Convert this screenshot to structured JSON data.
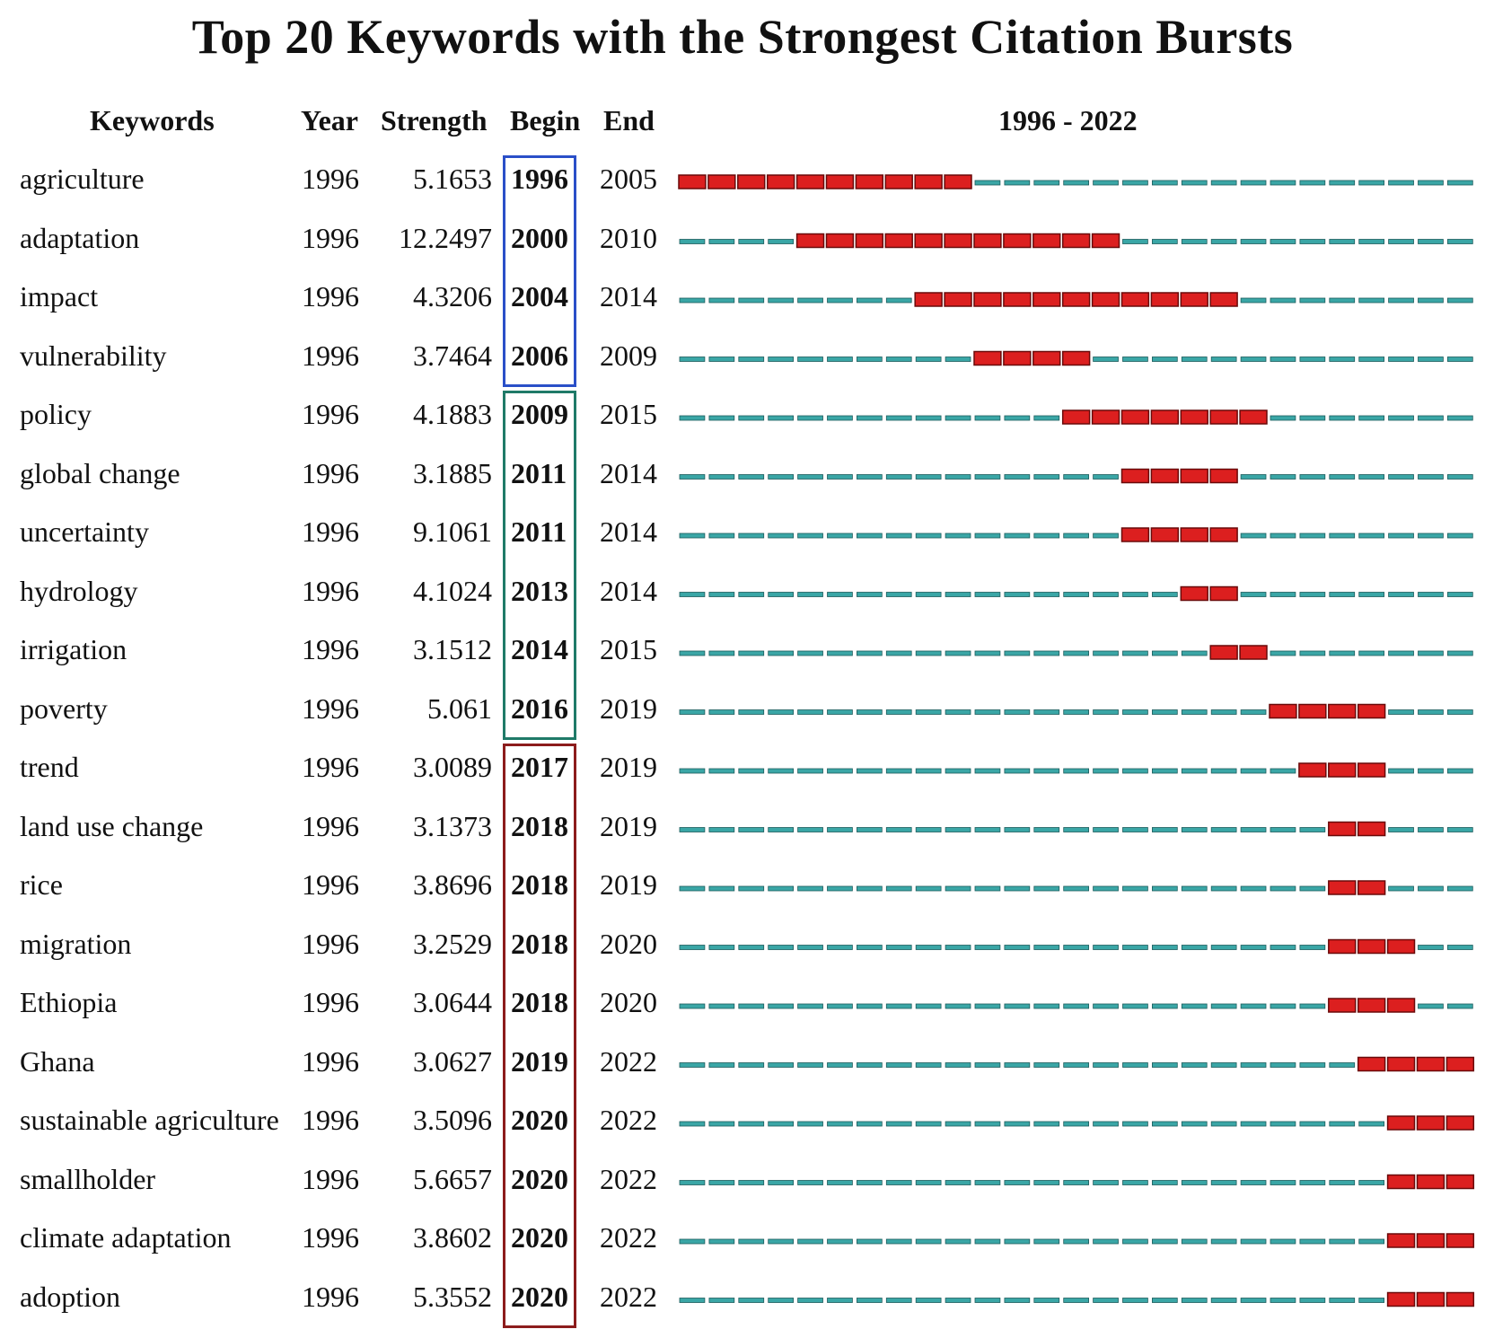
{
  "title": "Top 20 Keywords with the Strongest Citation Bursts",
  "headers": {
    "keywords": "Keywords",
    "year": "Year",
    "strength": "Strength",
    "begin": "Begin",
    "end": "End",
    "range": "1996 - 2022"
  },
  "colors": {
    "burst": "#dc1f1f",
    "baseline": "#3aa6a6",
    "group1_border": "#2a4fc8",
    "group2_border": "#1f7a68",
    "group3_border": "#8c1c1c"
  },
  "chart_data": {
    "type": "table",
    "title": "Top 20 Keywords with the Strongest Citation Bursts",
    "timeline": {
      "start": 1996,
      "end": 2022
    },
    "rows": [
      {
        "keyword": "agriculture",
        "year": "1996",
        "strength": "5.1653",
        "begin": "1996",
        "end": "2005"
      },
      {
        "keyword": "adaptation",
        "year": "1996",
        "strength": "12.2497",
        "begin": "2000",
        "end": "2010"
      },
      {
        "keyword": "impact",
        "year": "1996",
        "strength": "4.3206",
        "begin": "2004",
        "end": "2014"
      },
      {
        "keyword": "vulnerability",
        "year": "1996",
        "strength": "3.7464",
        "begin": "2006",
        "end": "2009"
      },
      {
        "keyword": "policy",
        "year": "1996",
        "strength": "4.1883",
        "begin": "2009",
        "end": "2015"
      },
      {
        "keyword": "global change",
        "year": "1996",
        "strength": "3.1885",
        "begin": "2011",
        "end": "2014"
      },
      {
        "keyword": "uncertainty",
        "year": "1996",
        "strength": "9.1061",
        "begin": "2011",
        "end": "2014"
      },
      {
        "keyword": "hydrology",
        "year": "1996",
        "strength": "4.1024",
        "begin": "2013",
        "end": "2014"
      },
      {
        "keyword": "irrigation",
        "year": "1996",
        "strength": "3.1512",
        "begin": "2014",
        "end": "2015"
      },
      {
        "keyword": "poverty",
        "year": "1996",
        "strength": "5.061",
        "begin": "2016",
        "end": "2019"
      },
      {
        "keyword": "trend",
        "year": "1996",
        "strength": "3.0089",
        "begin": "2017",
        "end": "2019"
      },
      {
        "keyword": "land use change",
        "year": "1996",
        "strength": "3.1373",
        "begin": "2018",
        "end": "2019"
      },
      {
        "keyword": "rice",
        "year": "1996",
        "strength": "3.8696",
        "begin": "2018",
        "end": "2019"
      },
      {
        "keyword": "migration",
        "year": "1996",
        "strength": "3.2529",
        "begin": "2018",
        "end": "2020"
      },
      {
        "keyword": "Ethiopia",
        "year": "1996",
        "strength": "3.0644",
        "begin": "2018",
        "end": "2020"
      },
      {
        "keyword": "Ghana",
        "year": "1996",
        "strength": "3.0627",
        "begin": "2019",
        "end": "2022"
      },
      {
        "keyword": "sustainable agriculture",
        "year": "1996",
        "strength": "3.5096",
        "begin": "2020",
        "end": "2022"
      },
      {
        "keyword": "smallholder",
        "year": "1996",
        "strength": "5.6657",
        "begin": "2020",
        "end": "2022"
      },
      {
        "keyword": "climate adaptation",
        "year": "1996",
        "strength": "3.8602",
        "begin": "2020",
        "end": "2022"
      },
      {
        "keyword": "adoption",
        "year": "1996",
        "strength": "5.3552",
        "begin": "2020",
        "end": "2022"
      }
    ],
    "groups": [
      {
        "first_row": 0,
        "last_row": 3
      },
      {
        "first_row": 4,
        "last_row": 9
      },
      {
        "first_row": 10,
        "last_row": 19
      }
    ]
  }
}
